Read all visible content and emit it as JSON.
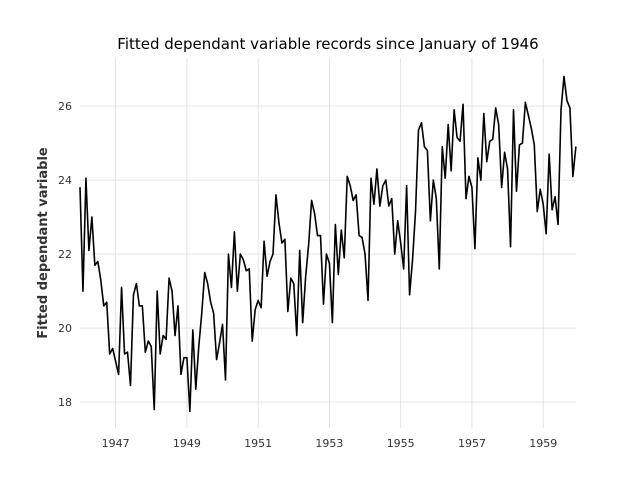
{
  "chart_data": {
    "type": "line",
    "title": "Fitted dependant variable records since January of 1946",
    "xlabel": "",
    "ylabel": "Fitted dependant variable",
    "x_ticks": [
      "1947",
      "1949",
      "1951",
      "1953",
      "1955",
      "1957",
      "1959"
    ],
    "y_ticks": [
      "18",
      "20",
      "22",
      "24",
      "26"
    ],
    "xlim": [
      1946.0,
      1959.92
    ],
    "ylim": [
      17.3,
      27.3
    ],
    "grid": true,
    "x_start": 1946.0,
    "x_step": 0.08333,
    "values": [
      23.8,
      21.0,
      24.05,
      22.1,
      23.0,
      21.7,
      21.8,
      21.3,
      20.6,
      20.7,
      19.3,
      19.45,
      19.1,
      18.75,
      21.1,
      19.3,
      19.35,
      18.45,
      20.9,
      21.2,
      20.6,
      20.6,
      19.35,
      19.65,
      19.5,
      17.8,
      21.0,
      19.3,
      19.8,
      19.7,
      21.35,
      21.0,
      19.8,
      20.6,
      18.75,
      19.2,
      19.2,
      17.75,
      19.95,
      18.35,
      19.5,
      20.4,
      21.5,
      21.2,
      20.7,
      20.4,
      19.15,
      19.6,
      20.1,
      18.6,
      22.0,
      21.1,
      22.6,
      21.0,
      22.0,
      21.85,
      21.55,
      21.6,
      19.65,
      20.5,
      20.75,
      20.55,
      22.35,
      21.4,
      21.8,
      22.0,
      23.6,
      22.85,
      22.3,
      22.4,
      20.45,
      21.35,
      21.2,
      19.8,
      22.1,
      20.15,
      21.4,
      22.25,
      23.45,
      23.1,
      22.5,
      22.5,
      20.65,
      22.0,
      21.75,
      20.15,
      22.8,
      21.45,
      22.65,
      21.9,
      24.1,
      23.85,
      23.45,
      23.6,
      22.5,
      22.45,
      22.0,
      20.75,
      24.05,
      23.35,
      24.3,
      23.3,
      23.85,
      24.0,
      23.3,
      23.5,
      22.0,
      22.9,
      22.3,
      21.6,
      23.85,
      20.9,
      21.85,
      23.15,
      25.35,
      25.55,
      24.9,
      24.8,
      22.9,
      24.0,
      23.5,
      21.6,
      24.9,
      24.05,
      25.5,
      24.25,
      25.9,
      25.15,
      25.05,
      26.05,
      23.5,
      24.1,
      23.8,
      22.15,
      24.6,
      24.0,
      25.8,
      24.5,
      25.05,
      25.1,
      25.95,
      25.5,
      23.8,
      24.75,
      24.3,
      22.2,
      25.9,
      23.7,
      24.95,
      25.0,
      26.1,
      25.75,
      25.4,
      24.95,
      23.15,
      23.75,
      23.35,
      22.55,
      24.7,
      23.2,
      23.55,
      22.8,
      25.9,
      26.8,
      26.15,
      25.95,
      24.1,
      24.9
    ]
  }
}
